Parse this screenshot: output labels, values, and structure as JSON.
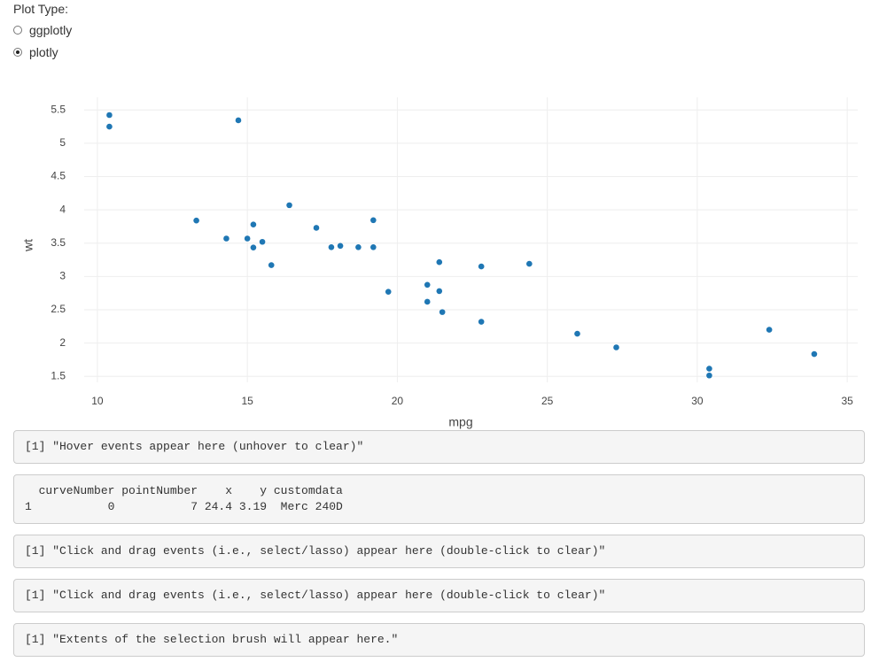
{
  "controls": {
    "label": "Plot Type:",
    "options": [
      "ggplotly",
      "plotly"
    ],
    "selected": "plotly"
  },
  "chart_data": {
    "type": "scatter",
    "x_label": "mpg",
    "y_label": "wt",
    "color": "#1f77b4",
    "grid": true,
    "x": [
      21.0,
      21.0,
      22.8,
      21.4,
      18.7,
      18.1,
      14.3,
      24.4,
      22.8,
      19.2,
      17.8,
      16.4,
      17.3,
      15.2,
      10.4,
      10.4,
      14.7,
      32.4,
      30.4,
      33.9,
      21.5,
      15.5,
      15.2,
      13.3,
      19.2,
      27.3,
      26.0,
      30.4,
      15.8,
      19.7,
      15.0,
      21.4
    ],
    "values": [
      2.62,
      2.875,
      2.32,
      3.215,
      3.44,
      3.46,
      3.57,
      3.19,
      3.15,
      3.44,
      3.44,
      4.07,
      3.73,
      3.78,
      5.25,
      5.424,
      5.345,
      2.2,
      1.615,
      1.835,
      2.465,
      3.52,
      3.435,
      3.84,
      3.845,
      1.935,
      2.14,
      1.513,
      3.17,
      2.77,
      3.57,
      2.78
    ],
    "xlim": [
      9.56,
      35.35
    ],
    "xticks": [
      10,
      15,
      20,
      25,
      30,
      35
    ],
    "ylim": [
      1.41,
      5.69
    ],
    "yticks": [
      1.5,
      2,
      2.5,
      3,
      3.5,
      4,
      4.5,
      5,
      5.5
    ]
  },
  "outputs": [
    [
      "[1] \"Hover events appear here (unhover to clear)\""
    ],
    [
      "  curveNumber pointNumber    x    y customdata",
      "1           0           7 24.4 3.19  Merc 240D"
    ],
    [
      "[1] \"Click and drag events (i.e., select/lasso) appear here (double-click to clear)\""
    ],
    [
      "[1] \"Click and drag events (i.e., select/lasso) appear here (double-click to clear)\""
    ],
    [
      "[1] \"Extents of the selection brush will appear here.\""
    ]
  ]
}
